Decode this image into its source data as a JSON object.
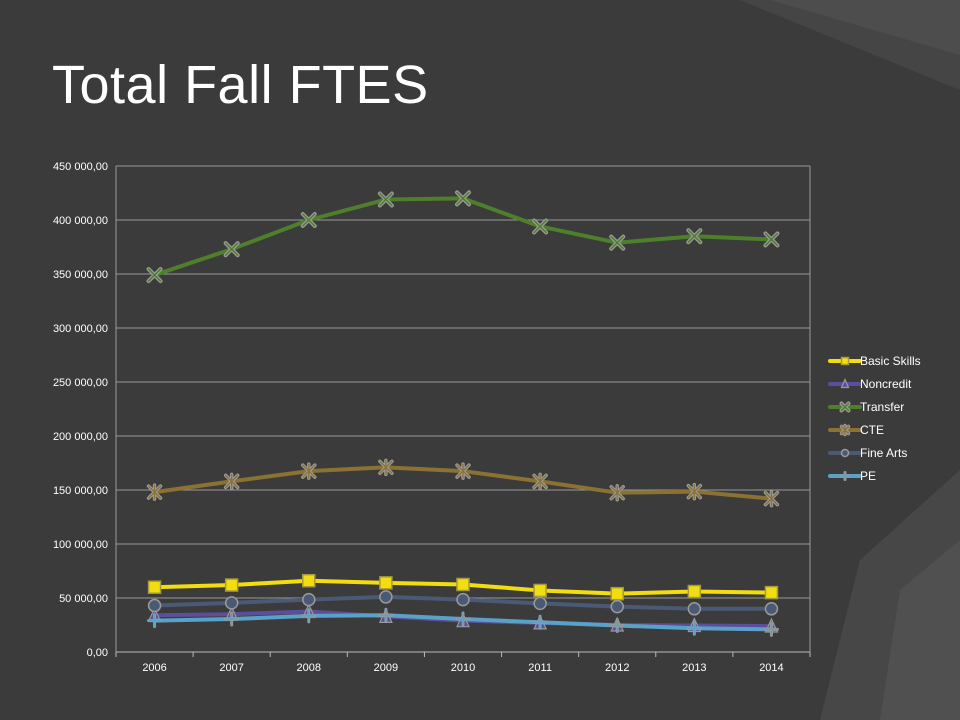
{
  "slide": {
    "title": "Total Fall FTES"
  },
  "chart_data": {
    "type": "line",
    "title": "",
    "xlabel": "",
    "ylabel": "",
    "categories": [
      "2006",
      "2007",
      "2008",
      "2009",
      "2010",
      "2011",
      "2012",
      "2013",
      "2014"
    ],
    "ylim": [
      0,
      450000
    ],
    "yticks": [
      0,
      50000,
      100000,
      150000,
      200000,
      250000,
      300000,
      350000,
      400000,
      450000
    ],
    "ytick_labels": [
      "0,00",
      "50 000,00",
      "100 000,00",
      "150 000,00",
      "200 000,00",
      "250 000,00",
      "300 000,00",
      "350 000,00",
      "400 000,00",
      "450 000,00"
    ],
    "grid": true,
    "legend_position": "right",
    "series": [
      {
        "name": "Basic Skills",
        "color": "#f2de10",
        "marker": "square",
        "values": [
          60000,
          62000,
          66000,
          64000,
          62500,
          57000,
          54000,
          56000,
          55000
        ]
      },
      {
        "name": "Noncredit",
        "color": "#5b4e9c",
        "marker": "triangle",
        "values": [
          34000,
          35000,
          37500,
          33000,
          29000,
          27000,
          25000,
          24500,
          24000
        ]
      },
      {
        "name": "Transfer",
        "color": "#4e7f2b",
        "marker": "x",
        "values": [
          349000,
          373000,
          400000,
          419000,
          420000,
          394000,
          379000,
          385000,
          382000
        ]
      },
      {
        "name": "CTE",
        "color": "#8b7233",
        "marker": "star",
        "values": [
          148000,
          158000,
          167500,
          171000,
          167500,
          158000,
          147500,
          148500,
          142000
        ]
      },
      {
        "name": "Fine Arts",
        "color": "#4a5a75",
        "marker": "circle",
        "values": [
          43000,
          45500,
          48500,
          51000,
          48500,
          45000,
          42000,
          40000,
          40000
        ]
      },
      {
        "name": "PE",
        "color": "#5aa1c8",
        "marker": "plus",
        "values": [
          29000,
          30500,
          33500,
          34000,
          30500,
          27500,
          24500,
          22000,
          21000
        ]
      }
    ]
  }
}
